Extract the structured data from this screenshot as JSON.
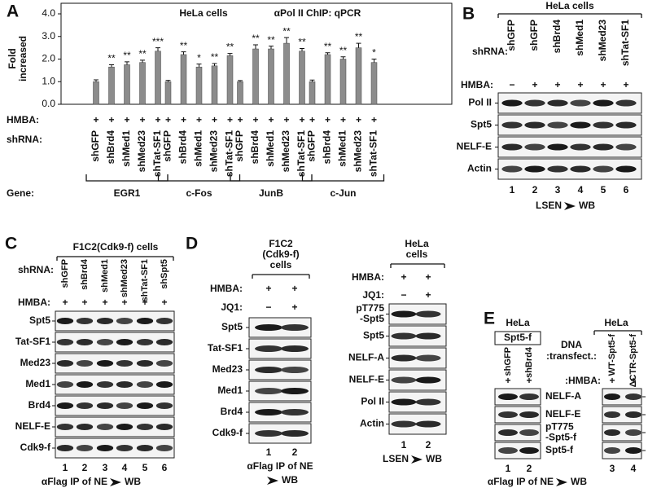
{
  "chart_data": {
    "type": "bar",
    "panel_label": "A",
    "y_label": [
      "Fold",
      "increased"
    ],
    "annotations": [
      "HeLa cells",
      "αPol II ChIP: qPCR"
    ],
    "ylim": [
      0,
      4
    ],
    "yticks": [
      {
        "value": 0,
        "label": "0.0"
      },
      {
        "value": 1,
        "label": "1.0"
      },
      {
        "value": 2,
        "label": "2.0"
      },
      {
        "value": 3,
        "label": "3.0"
      },
      {
        "value": 4,
        "label": "4.0"
      }
    ],
    "color": "#8c8c8c",
    "condition_label": "HMBA:",
    "conditions": [
      "+",
      "+",
      "+",
      "+",
      "+",
      "+",
      "+",
      "+",
      "+",
      "+",
      "+",
      "+",
      "+",
      "+",
      "+",
      "+",
      "+",
      "+",
      "+",
      "+"
    ],
    "category_label": "shRNA:",
    "categories": [
      "shGFP",
      "shBrd4",
      "shMed1",
      "shMed23",
      "shTat-SF1",
      "shGFP",
      "shBrd4",
      "shMed1",
      "shMed23",
      "shTat-SF1",
      "shGFP",
      "shBrd4",
      "shMed1",
      "shMed23",
      "shTat-SF1",
      "shGFP",
      "shBrd4",
      "shMed1",
      "shMed23",
      "shTat-SF1"
    ],
    "group_label": "Gene:",
    "groups": [
      "EGR1",
      "c-Fos",
      "JunB",
      "c-Jun"
    ],
    "values": [
      1.0,
      1.65,
      1.75,
      1.85,
      2.35,
      1.0,
      2.2,
      1.65,
      1.7,
      2.15,
      1.0,
      2.45,
      2.45,
      2.7,
      2.35,
      1.0,
      2.2,
      2.0,
      2.5,
      1.85
    ],
    "errors": [
      0.08,
      0.1,
      0.13,
      0.1,
      0.15,
      0.06,
      0.12,
      0.13,
      0.1,
      0.1,
      0.05,
      0.18,
      0.12,
      0.25,
      0.12,
      0.07,
      0.08,
      0.1,
      0.2,
      0.15
    ],
    "significance": [
      null,
      "**",
      "**",
      "**",
      "***",
      null,
      "**",
      "*",
      "**",
      "**",
      null,
      "**",
      "**",
      "**",
      "**",
      null,
      "**",
      "**",
      "**",
      "*"
    ]
  },
  "blots": {
    "B": {
      "letter": "B",
      "title": [
        "HeLa cells"
      ],
      "row_label": [
        "shRNA:"
      ],
      "lanes": [
        "shGFP",
        "shGFP",
        "shBrd4",
        "shMed1",
        "shMed23",
        "shTat-SF1"
      ],
      "conditions": [
        {
          "label": "HMBA:",
          "marks": [
            "−",
            "+",
            "+",
            "+",
            "+",
            "+"
          ]
        }
      ],
      "rows": [
        "Pol II",
        "Spt5",
        "NELF-E",
        "Actin"
      ],
      "lane_numbers": [
        1,
        2,
        3,
        4,
        5,
        6
      ],
      "footer": [
        "LSEN",
        "WB"
      ]
    },
    "C": {
      "letter": "C",
      "title": [
        "F1C2(Cdk9-f) cells"
      ],
      "row_label": [
        "shRNA:"
      ],
      "lanes": [
        "shGFP",
        "shBrd4",
        "shMed1",
        "shMed23",
        "shTat-SF1",
        "shSpt5"
      ],
      "conditions": [
        {
          "label": "HMBA:",
          "marks": [
            "+",
            "+",
            "+",
            "+",
            "+",
            "+"
          ]
        }
      ],
      "rows": [
        "Spt5",
        "Tat-SF1",
        "Med23",
        "Med1",
        "Brd4",
        "NELF-E",
        "Cdk9-f"
      ],
      "lane_numbers": [
        1,
        2,
        3,
        4,
        5,
        6
      ],
      "footer": [
        "αFlag IP of NE",
        "WB"
      ]
    },
    "D": {
      "letter": "D",
      "left": {
        "title": [
          "F1C2",
          "(Cdk9-f)",
          "cells"
        ],
        "conditions": [
          {
            "label": "HMBA:",
            "marks": [
              "+",
              "+"
            ]
          },
          {
            "label": "JQ1:",
            "marks": [
              "−",
              "+"
            ]
          }
        ],
        "rows": [
          "Spt5",
          "Tat-SF1",
          "Med23",
          "Med1",
          "Brd4",
          "Cdk9-f"
        ],
        "lane_numbers": [
          1,
          2
        ],
        "footer": [
          "αFlag IP of NE",
          "WB"
        ]
      },
      "right": {
        "title": [
          "HeLa",
          "cells"
        ],
        "conditions": [
          {
            "label": "HMBA:",
            "marks": [
              "+",
              "+"
            ]
          },
          {
            "label": "JQ1:",
            "marks": [
              "−",
              "+"
            ]
          }
        ],
        "rows": [
          [
            "pT775",
            "-Spt5"
          ],
          "Spt5",
          "NELF-A",
          "NELF-E",
          "Pol II",
          "Actin"
        ],
        "lane_numbers": [
          1,
          2
        ],
        "footer": [
          "LSEN",
          "WB"
        ]
      }
    },
    "E": {
      "letter": "E",
      "left": {
        "title": [
          "HeLa"
        ],
        "subtitle": "Spt5-f",
        "lanes": [
          "shGFP",
          "shBrd4"
        ],
        "conditions": [
          {
            "marks": [
              "+",
              "+"
            ]
          }
        ],
        "lane_numbers": [
          1,
          2
        ]
      },
      "right": {
        "title": [
          "HeLa"
        ],
        "row_label": [
          "DNA",
          ":transfect.:"
        ],
        "lanes": [
          "WT-Spt5-f",
          "ΔCTR-Spt5-f"
        ],
        "conditions": [
          {
            "label": ":HMBA:",
            "marks": [
              "+",
              "+"
            ]
          }
        ],
        "lane_numbers": [
          3,
          4
        ]
      },
      "rows": [
        "NELF-A",
        "NELF-E",
        [
          "pT775",
          "-Spt5-f"
        ],
        "Spt5-f"
      ],
      "footer": [
        "αFlag IP of NE",
        "WB"
      ]
    }
  }
}
